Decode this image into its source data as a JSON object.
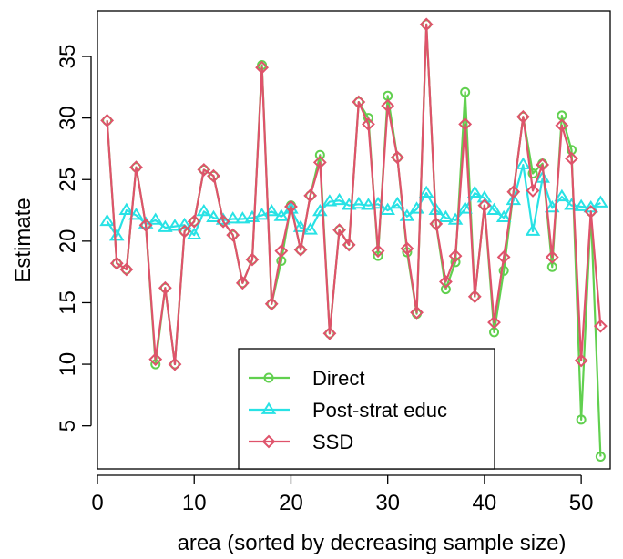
{
  "chart_data": {
    "type": "line",
    "xlabel": "area (sorted by decreasing sample size)",
    "ylabel": "Estimate",
    "xlim": [
      0,
      53
    ],
    "ylim": [
      1.5,
      38.7
    ],
    "x_ticks": [
      0,
      10,
      20,
      30,
      40,
      50
    ],
    "y_ticks": [
      5,
      10,
      15,
      20,
      25,
      30,
      35
    ],
    "legend_position": "bottom-center",
    "grid": false,
    "x": [
      1,
      2,
      3,
      4,
      5,
      6,
      7,
      8,
      9,
      10,
      11,
      12,
      13,
      14,
      15,
      16,
      17,
      18,
      19,
      20,
      21,
      22,
      23,
      24,
      25,
      26,
      27,
      28,
      29,
      30,
      31,
      32,
      33,
      34,
      35,
      36,
      37,
      38,
      39,
      40,
      41,
      42,
      43,
      44,
      45,
      46,
      47,
      48,
      49,
      50,
      51,
      52
    ],
    "series": [
      {
        "name": "Direct",
        "color": "#61D04F",
        "marker": "circle",
        "values": [
          29.8,
          18.2,
          17.7,
          26.0,
          21.3,
          10.0,
          16.2,
          10.0,
          20.8,
          21.6,
          25.8,
          25.3,
          21.6,
          20.5,
          16.6,
          18.5,
          34.3,
          14.9,
          18.4,
          22.9,
          19.3,
          23.7,
          27.0,
          12.5,
          20.9,
          19.7,
          31.3,
          30.0,
          18.8,
          31.8,
          26.8,
          19.1,
          14.1,
          37.6,
          21.4,
          16.1,
          18.3,
          32.1,
          15.5,
          22.9,
          12.6,
          17.6,
          24.0,
          30.1,
          25.5,
          26.3,
          17.9,
          30.2,
          27.4,
          5.5,
          22.4,
          2.5
        ]
      },
      {
        "name": "Post-strat educ",
        "color": "#28E2E5",
        "marker": "triangle",
        "values": [
          21.6,
          20.4,
          22.5,
          22.1,
          21.4,
          21.7,
          21.1,
          21.2,
          21.3,
          20.5,
          22.4,
          21.9,
          21.7,
          21.8,
          21.8,
          21.9,
          22.1,
          22.4,
          22.0,
          22.6,
          21.1,
          20.9,
          22.4,
          23.2,
          23.3,
          22.9,
          23.0,
          22.9,
          23.0,
          22.5,
          23.0,
          22.0,
          22.6,
          23.9,
          22.5,
          21.9,
          21.7,
          22.6,
          23.9,
          23.5,
          22.5,
          21.9,
          23.3,
          26.2,
          20.8,
          25.1,
          22.7,
          23.6,
          22.9,
          22.8,
          22.7,
          23.1
        ]
      },
      {
        "name": "SSD",
        "color": "#DF536B",
        "marker": "diamond",
        "values": [
          29.8,
          18.2,
          17.7,
          26.0,
          21.3,
          10.4,
          16.2,
          10.0,
          20.8,
          21.6,
          25.8,
          25.3,
          21.6,
          20.5,
          16.6,
          18.5,
          34.1,
          14.9,
          19.2,
          22.8,
          19.3,
          23.7,
          26.4,
          12.5,
          20.9,
          19.7,
          31.3,
          29.5,
          19.2,
          31.0,
          26.8,
          19.4,
          14.2,
          37.6,
          21.4,
          16.7,
          18.8,
          29.5,
          15.5,
          22.9,
          13.4,
          18.7,
          24.0,
          30.1,
          24.1,
          26.2,
          18.7,
          29.4,
          26.7,
          10.3,
          22.4,
          13.1
        ]
      }
    ]
  }
}
